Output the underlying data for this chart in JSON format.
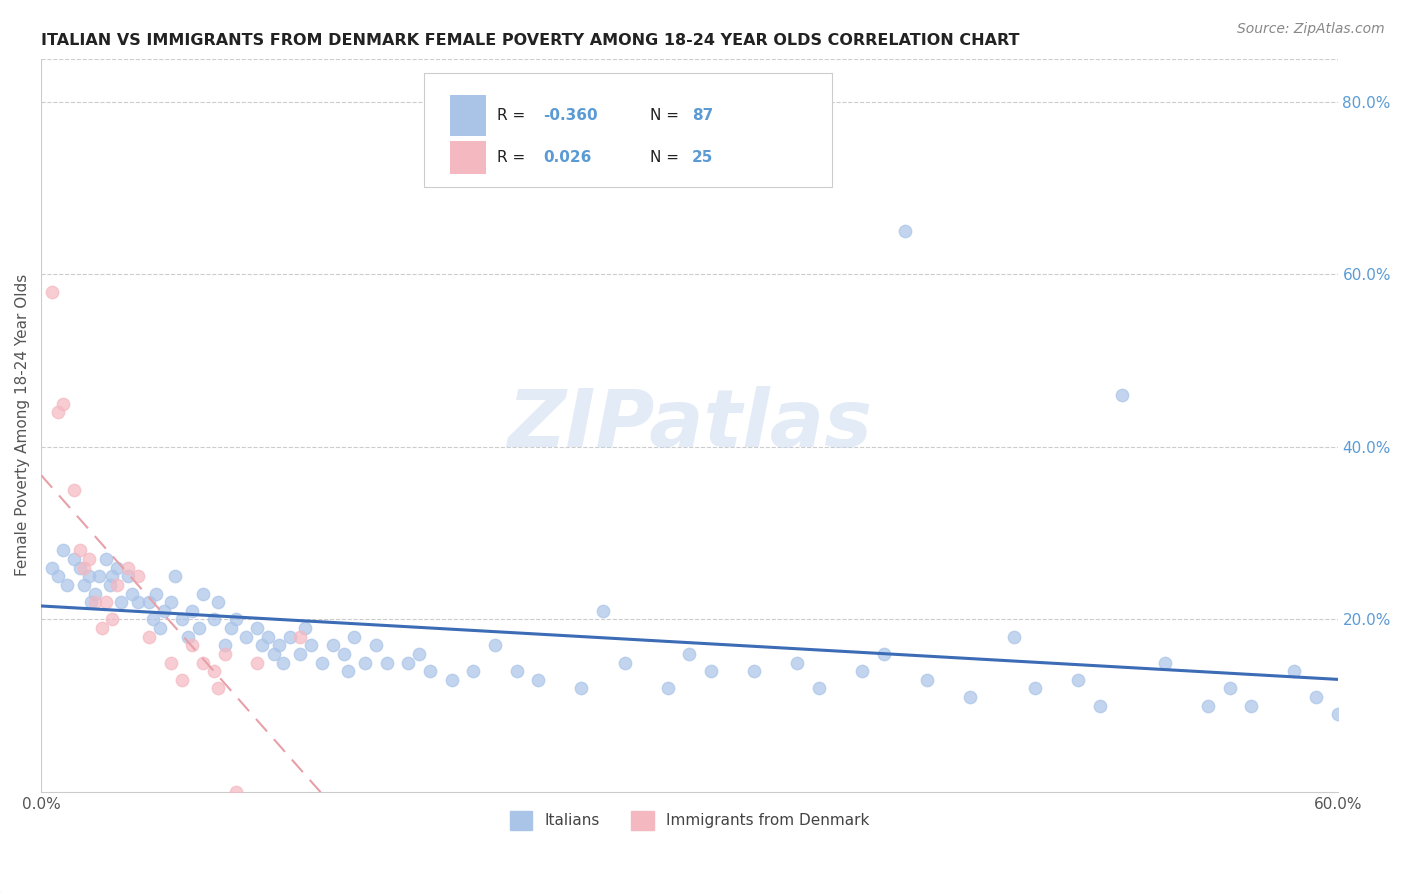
{
  "title": "ITALIAN VS IMMIGRANTS FROM DENMARK FEMALE POVERTY AMONG 18-24 YEAR OLDS CORRELATION CHART",
  "source": "Source: ZipAtlas.com",
  "ylabel": "Female Poverty Among 18-24 Year Olds",
  "xlim": [
    0.0,
    0.6
  ],
  "ylim": [
    0.0,
    0.85
  ],
  "right_yticks": [
    0.2,
    0.4,
    0.6,
    0.8
  ],
  "right_yticklabels": [
    "20.0%",
    "40.0%",
    "60.0%",
    "80.0%"
  ],
  "xticks": [
    0.0,
    0.1,
    0.2,
    0.3,
    0.4,
    0.5,
    0.6
  ],
  "xticklabels": [
    "0.0%",
    "",
    "",
    "",
    "",
    "",
    "60.0%"
  ],
  "legend_labels": [
    "Italians",
    "Immigrants from Denmark"
  ],
  "italians_color": "#aac4e8",
  "denmark_color": "#f4b8c1",
  "italians_line_color": "#3c6cb5",
  "denmark_line_color": "#e8a0a8",
  "watermark": "ZIPatlas",
  "italians_x": [
    0.005,
    0.008,
    0.01,
    0.012,
    0.015,
    0.018,
    0.02,
    0.022,
    0.023,
    0.025,
    0.027,
    0.03,
    0.032,
    0.033,
    0.035,
    0.037,
    0.04,
    0.042,
    0.045,
    0.05,
    0.052,
    0.053,
    0.055,
    0.057,
    0.06,
    0.062,
    0.065,
    0.068,
    0.07,
    0.073,
    0.075,
    0.08,
    0.082,
    0.085,
    0.088,
    0.09,
    0.095,
    0.1,
    0.102,
    0.105,
    0.108,
    0.11,
    0.112,
    0.115,
    0.12,
    0.122,
    0.125,
    0.13,
    0.135,
    0.14,
    0.142,
    0.145,
    0.15,
    0.155,
    0.16,
    0.17,
    0.175,
    0.18,
    0.19,
    0.2,
    0.21,
    0.22,
    0.23,
    0.25,
    0.26,
    0.27,
    0.29,
    0.3,
    0.31,
    0.33,
    0.35,
    0.36,
    0.38,
    0.39,
    0.4,
    0.41,
    0.43,
    0.45,
    0.46,
    0.48,
    0.49,
    0.5,
    0.52,
    0.54,
    0.55,
    0.56,
    0.58,
    0.59,
    0.6
  ],
  "italians_y": [
    0.26,
    0.25,
    0.28,
    0.24,
    0.27,
    0.26,
    0.24,
    0.25,
    0.22,
    0.23,
    0.25,
    0.27,
    0.24,
    0.25,
    0.26,
    0.22,
    0.25,
    0.23,
    0.22,
    0.22,
    0.2,
    0.23,
    0.19,
    0.21,
    0.22,
    0.25,
    0.2,
    0.18,
    0.21,
    0.19,
    0.23,
    0.2,
    0.22,
    0.17,
    0.19,
    0.2,
    0.18,
    0.19,
    0.17,
    0.18,
    0.16,
    0.17,
    0.15,
    0.18,
    0.16,
    0.19,
    0.17,
    0.15,
    0.17,
    0.16,
    0.14,
    0.18,
    0.15,
    0.17,
    0.15,
    0.15,
    0.16,
    0.14,
    0.13,
    0.14,
    0.17,
    0.14,
    0.13,
    0.12,
    0.21,
    0.15,
    0.12,
    0.16,
    0.14,
    0.14,
    0.15,
    0.12,
    0.14,
    0.16,
    0.65,
    0.13,
    0.11,
    0.18,
    0.12,
    0.13,
    0.1,
    0.46,
    0.15,
    0.1,
    0.12,
    0.1,
    0.14,
    0.11,
    0.09
  ],
  "denmark_x": [
    0.005,
    0.008,
    0.01,
    0.015,
    0.018,
    0.02,
    0.022,
    0.025,
    0.028,
    0.03,
    0.033,
    0.035,
    0.04,
    0.045,
    0.05,
    0.06,
    0.065,
    0.07,
    0.075,
    0.08,
    0.082,
    0.085,
    0.09,
    0.1,
    0.12
  ],
  "denmark_y": [
    0.58,
    0.44,
    0.45,
    0.35,
    0.28,
    0.26,
    0.27,
    0.22,
    0.19,
    0.22,
    0.2,
    0.24,
    0.26,
    0.25,
    0.18,
    0.15,
    0.13,
    0.17,
    0.15,
    0.14,
    0.12,
    0.16,
    0.0,
    0.15,
    0.18
  ]
}
